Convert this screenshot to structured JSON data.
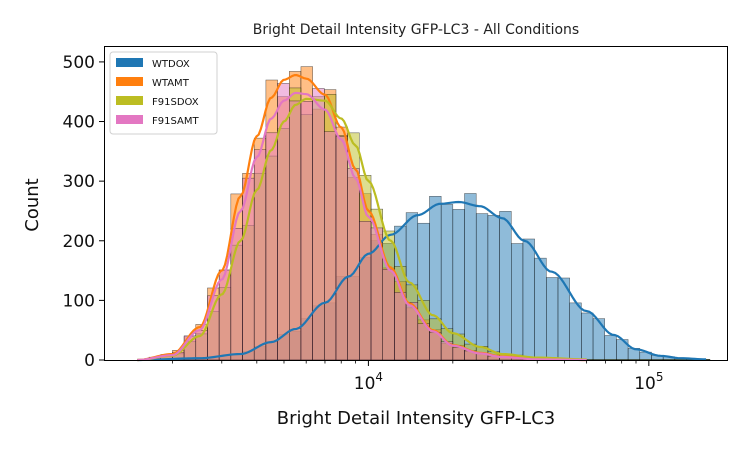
{
  "chart_data": {
    "type": "histogram",
    "title": "Bright Detail Intensity GFP-LC3 - All Conditions",
    "xlabel": "Bright Detail Intensity GFP-LC3",
    "ylabel": "Count",
    "x_scale": "log",
    "xlim": [
      1150,
      190000
    ],
    "ylim": [
      0,
      525
    ],
    "x_ticks": [
      {
        "value": 10000,
        "base": "10",
        "exp": "4"
      },
      {
        "value": 100000,
        "base": "10",
        "exp": "5"
      }
    ],
    "y_ticks": [
      0,
      100,
      200,
      300,
      400,
      500
    ],
    "legend_position": "upper left",
    "series": [
      {
        "name": "WTDOX",
        "color": "#1f77b4",
        "kde": [
          [
            1500,
            0
          ],
          [
            2500,
            3
          ],
          [
            3500,
            10
          ],
          [
            4500,
            30
          ],
          [
            5500,
            52
          ],
          [
            7000,
            96
          ],
          [
            8500,
            140
          ],
          [
            10000,
            178
          ],
          [
            12000,
            210
          ],
          [
            15000,
            243
          ],
          [
            18000,
            262
          ],
          [
            21000,
            265
          ],
          [
            25000,
            258
          ],
          [
            30000,
            238
          ],
          [
            36000,
            200
          ],
          [
            45000,
            148
          ],
          [
            60000,
            82
          ],
          [
            75000,
            42
          ],
          [
            90000,
            18
          ],
          [
            110000,
            7
          ],
          [
            130000,
            3
          ],
          [
            160000,
            1
          ]
        ]
      },
      {
        "name": "WTAMT",
        "color": "#ff7f0e",
        "kde": [
          [
            1500,
            0
          ],
          [
            2000,
            10
          ],
          [
            2500,
            55
          ],
          [
            3000,
            150
          ],
          [
            3500,
            275
          ],
          [
            4000,
            375
          ],
          [
            4500,
            440
          ],
          [
            5000,
            470
          ],
          [
            5500,
            478
          ],
          [
            6000,
            472
          ],
          [
            7000,
            445
          ],
          [
            8000,
            390
          ],
          [
            9000,
            320
          ],
          [
            10000,
            250
          ],
          [
            12000,
            155
          ],
          [
            14000,
            95
          ],
          [
            17000,
            50
          ],
          [
            20000,
            25
          ],
          [
            25000,
            12
          ],
          [
            30000,
            6
          ],
          [
            40000,
            2
          ],
          [
            60000,
            0
          ]
        ]
      },
      {
        "name": "F91SDOX",
        "color": "#bcbd22",
        "kde": [
          [
            1500,
            0
          ],
          [
            2000,
            7
          ],
          [
            2500,
            40
          ],
          [
            3000,
            110
          ],
          [
            3500,
            200
          ],
          [
            4000,
            285
          ],
          [
            4500,
            352
          ],
          [
            5000,
            400
          ],
          [
            5500,
            428
          ],
          [
            6000,
            438
          ],
          [
            7000,
            435
          ],
          [
            8000,
            405
          ],
          [
            9000,
            360
          ],
          [
            10000,
            300
          ],
          [
            12000,
            200
          ],
          [
            14000,
            130
          ],
          [
            17000,
            75
          ],
          [
            20000,
            45
          ],
          [
            25000,
            22
          ],
          [
            30000,
            10
          ],
          [
            40000,
            4
          ],
          [
            60000,
            1
          ]
        ]
      },
      {
        "name": "F91SAMT",
        "color": "#e377c2",
        "kde": [
          [
            1500,
            0
          ],
          [
            2000,
            8
          ],
          [
            2500,
            50
          ],
          [
            3000,
            135
          ],
          [
            3500,
            250
          ],
          [
            4000,
            340
          ],
          [
            4500,
            405
          ],
          [
            5000,
            435
          ],
          [
            5500,
            448
          ],
          [
            6000,
            446
          ],
          [
            7000,
            420
          ],
          [
            8000,
            370
          ],
          [
            9000,
            305
          ],
          [
            10000,
            240
          ],
          [
            12000,
            150
          ],
          [
            14000,
            92
          ],
          [
            17000,
            48
          ],
          [
            20000,
            24
          ],
          [
            25000,
            11
          ],
          [
            30000,
            5
          ],
          [
            40000,
            1
          ],
          [
            60000,
            0
          ]
        ]
      }
    ],
    "histogram": {
      "bins_per_decade": 24,
      "x_start": 1500,
      "x_end": 160000,
      "fill_opacity": 0.5,
      "edge_color": "#000000"
    }
  }
}
